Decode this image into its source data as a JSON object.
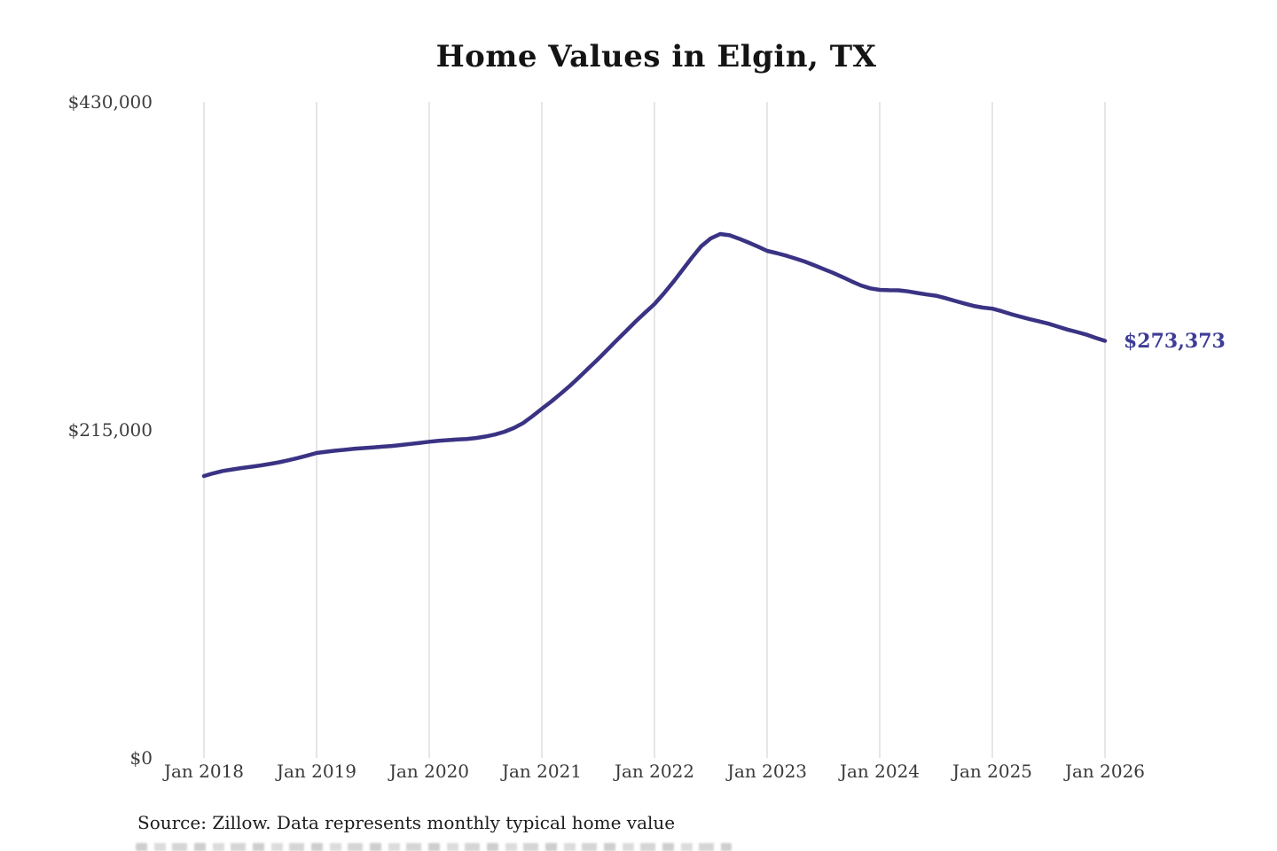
{
  "chart": {
    "title": "Home Values in Elgin, TX",
    "source": "Source: Zillow. Data represents monthly typical home value"
  },
  "chart_data": {
    "type": "line",
    "title": "Home Values in Elgin, TX",
    "xlabel": "",
    "ylabel": "",
    "ylim": [
      0,
      430000
    ],
    "grid": "vertical-only",
    "gridline_color": "#cdcdcd",
    "x_tick_labels": [
      "Jan 2018",
      "Jan 2019",
      "Jan 2020",
      "Jan 2021",
      "Jan 2022",
      "Jan 2023",
      "Jan 2024",
      "Jan 2025",
      "Jan 2026"
    ],
    "y_ticks": [
      {
        "value": 430000,
        "label": "$430,000"
      },
      {
        "value": 215000,
        "label": "$215,000"
      },
      {
        "value": 0,
        "label": "$0"
      }
    ],
    "series": [
      {
        "name": "home_value",
        "color": "#3a3384",
        "start_month": "2018-01",
        "frequency": "monthly",
        "values": [
          184800,
          186600,
          188100,
          189100,
          190000,
          190800,
          191700,
          192700,
          193800,
          195100,
          196600,
          198200,
          199900,
          200700,
          201400,
          202000,
          202600,
          203100,
          203500,
          204000,
          204500,
          205100,
          205800,
          206500,
          207300,
          207900,
          208300,
          208700,
          209100,
          209700,
          210700,
          212000,
          213800,
          216200,
          219500,
          224000,
          228900,
          233600,
          238700,
          244000,
          249700,
          255600,
          261500,
          267700,
          273900,
          280000,
          286100,
          291900,
          297500,
          304500,
          312000,
          320000,
          328000,
          335500,
          340600,
          343400,
          342600,
          340400,
          337900,
          335200,
          332400,
          330900,
          329300,
          327400,
          325400,
          323000,
          320500,
          318000,
          315300,
          312400,
          309700,
          307800,
          306800,
          306600,
          306500,
          305800,
          304800,
          303800,
          303000,
          301400,
          299600,
          297900,
          296300,
          295200,
          294500,
          292800,
          290900,
          289200,
          287600,
          286100,
          284600,
          282700,
          280800,
          279200,
          277500,
          275400,
          273373
        ]
      }
    ],
    "end_annotation": {
      "text": "$273,373",
      "value": 273373,
      "color": "#3e3c96"
    }
  }
}
